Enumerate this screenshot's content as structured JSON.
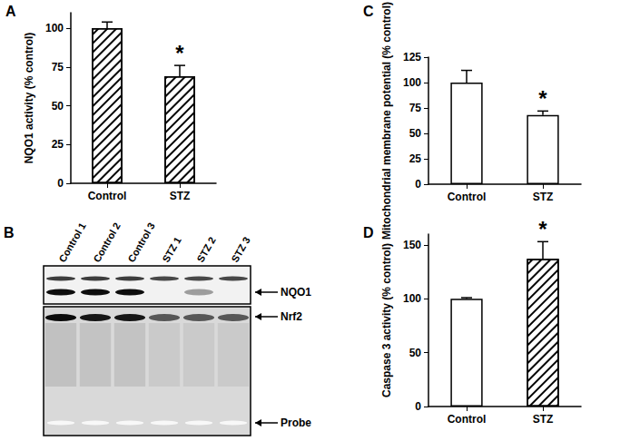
{
  "chart_data": [
    {
      "type": "bar",
      "panel": "A",
      "categories": [
        "Control",
        "STZ"
      ],
      "values": [
        100,
        69
      ],
      "errors": [
        4,
        7
      ],
      "annotations": [
        null,
        "*"
      ],
      "y_label": "NQO1 activity (% control)",
      "ylim": [
        0,
        110
      ],
      "yticks": [
        0,
        25,
        50,
        75,
        100
      ],
      "colors": [
        "#ffffff",
        "#ffffff"
      ],
      "marker": [
        "hatch",
        "hatch"
      ],
      "grid": false
    },
    {
      "type": "bar",
      "panel": "C",
      "categories": [
        "Control",
        "STZ"
      ],
      "values": [
        100,
        68
      ],
      "errors": [
        12,
        4
      ],
      "annotations": [
        null,
        "*"
      ],
      "y_label": "Mitochondrial membrane potential (% control)",
      "ylim": [
        0,
        125
      ],
      "yticks": [
        0,
        25,
        50,
        75,
        100,
        125
      ],
      "colors": [
        "#ffffff",
        "#ffffff"
      ],
      "marker": [
        "none",
        "none"
      ],
      "grid": false
    },
    {
      "type": "bar",
      "panel": "D",
      "categories": [
        "Control",
        "STZ"
      ],
      "values": [
        100,
        137
      ],
      "errors": [
        1,
        16
      ],
      "annotations": [
        null,
        "*"
      ],
      "y_label": "Caspase 3 activity (% control)",
      "ylim": [
        0,
        160
      ],
      "yticks": [
        0,
        50,
        100,
        150
      ],
      "colors": [
        "#ffffff",
        "#ffffff"
      ],
      "marker": [
        "none",
        "hatch"
      ],
      "grid": false
    }
  ],
  "blot": {
    "panel": "B",
    "lanes": [
      "Control 1",
      "Control 2",
      "Control 3",
      "STZ 1",
      "STZ 2",
      "STZ 3"
    ],
    "band_labels": [
      "NQO1",
      "Nrf2",
      "Probe"
    ]
  }
}
